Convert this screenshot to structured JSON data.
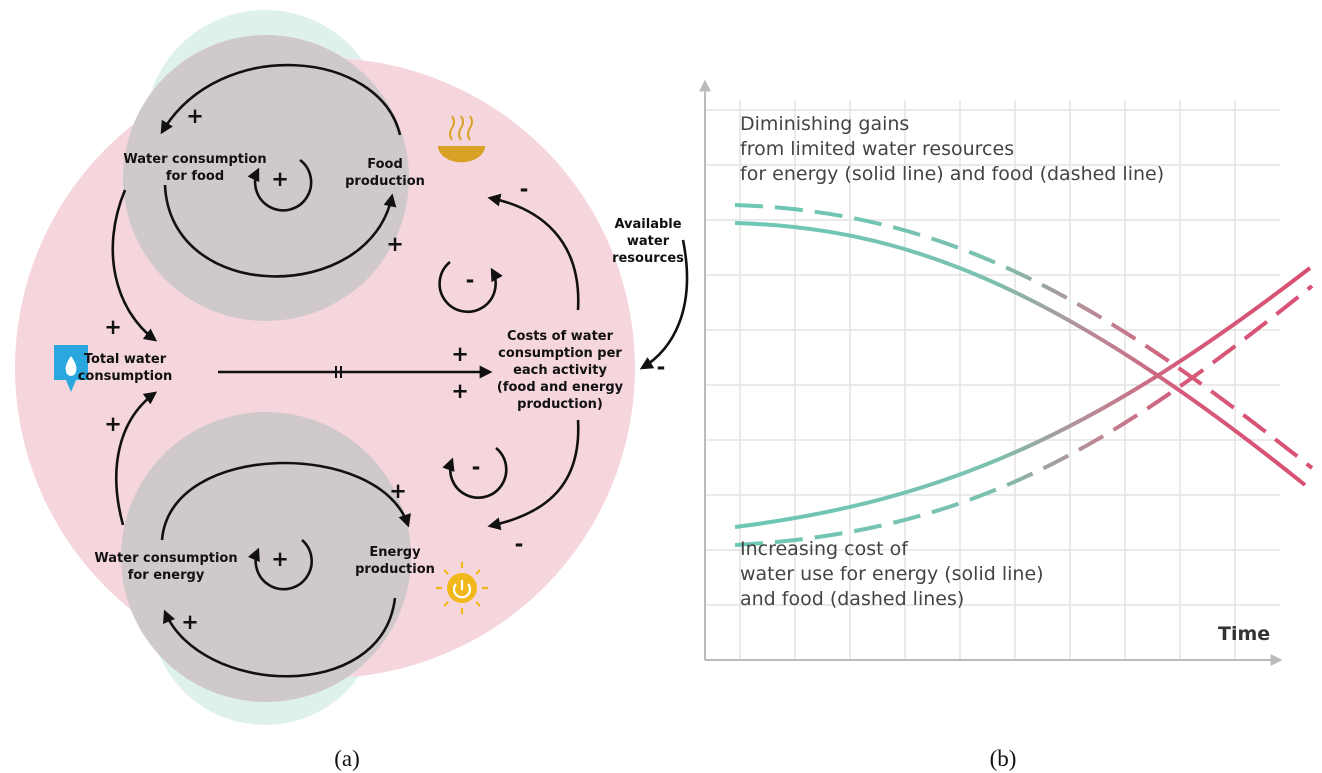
{
  "panel_a": {
    "label": "(a)",
    "nodes": [
      {
        "label": [
          "Water consumption",
          "for food"
        ]
      },
      {
        "label": [
          "Food",
          "production"
        ]
      },
      {
        "label": [
          "Total water",
          "consumption"
        ]
      },
      {
        "label": [
          "Costs of water",
          "consumption per",
          "each activity",
          "(food and energy",
          "production)"
        ]
      },
      {
        "label": [
          "Available",
          "water",
          "resources"
        ]
      },
      {
        "label": [
          "Water consumption",
          "for energy"
        ]
      },
      {
        "label": [
          "Energy",
          "production"
        ]
      }
    ],
    "signs": [
      "+",
      "+",
      "+",
      "+",
      "+",
      "+",
      "+",
      "+",
      "+",
      "+",
      "-",
      "-",
      "-",
      "-",
      "-"
    ]
  },
  "panel_b": {
    "label": "(b)",
    "annotations": [
      [
        "Diminishing gains",
        "from limited water resources",
        "for energy (solid line) and food (dashed line)"
      ],
      [
        "Increasing cost of",
        "water use for energy (solid line)",
        "and food (dashed lines)"
      ]
    ],
    "x_axis_label": "Time"
  }
}
